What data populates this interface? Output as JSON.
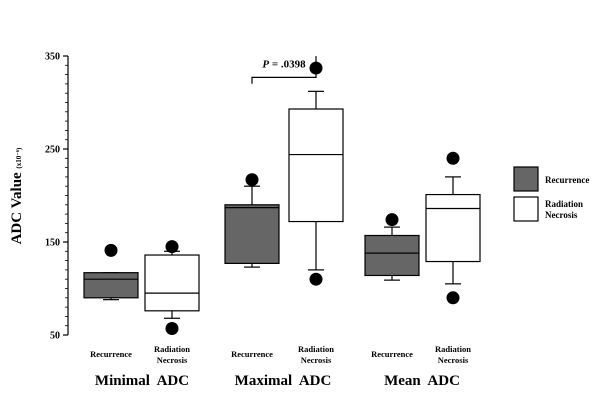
{
  "chart_data": {
    "type": "box",
    "ylabel": "ADC Value",
    "ylabel_unit": "(x10⁻⁶)",
    "ylim": [
      50,
      350
    ],
    "yticks": [
      50,
      150,
      250,
      350
    ],
    "groups": [
      {
        "label": "Minimal  ADC"
      },
      {
        "label": "Maximal  ADC"
      },
      {
        "label": "Mean  ADC"
      }
    ],
    "series": [
      {
        "name": "Recurrence",
        "color": "#666666"
      },
      {
        "name": "Radiation Necrosis",
        "color": "#ffffff"
      }
    ],
    "boxes": [
      {
        "group": 0,
        "series": 0,
        "category": "Recurrence",
        "whisker_low": 88,
        "q1": 90,
        "median": 110,
        "q3": 117,
        "whisker_high": 117,
        "outliers": [
          141
        ]
      },
      {
        "group": 0,
        "series": 1,
        "category_lines": [
          "Radiation",
          "Necrosis"
        ],
        "whisker_low": 68,
        "q1": 76,
        "median": 95,
        "q3": 136,
        "whisker_high": 140,
        "outliers": [
          145,
          57
        ]
      },
      {
        "group": 1,
        "series": 0,
        "category": "Recurrence",
        "whisker_low": 123,
        "q1": 127,
        "median": 187,
        "q3": 190,
        "whisker_high": 210,
        "outliers": [
          217
        ]
      },
      {
        "group": 1,
        "series": 1,
        "category_lines": [
          "Radiation",
          "Necrosis"
        ],
        "whisker_low": 120,
        "q1": 172,
        "median": 244,
        "q3": 293,
        "whisker_high": 312,
        "outliers": [
          337,
          110
        ]
      },
      {
        "group": 2,
        "series": 0,
        "category": "Recurrence",
        "whisker_low": 109,
        "q1": 114,
        "median": 138,
        "q3": 157,
        "whisker_high": 166,
        "outliers": [
          174
        ]
      },
      {
        "group": 2,
        "series": 1,
        "category_lines": [
          "Radiation",
          "Necrosis"
        ],
        "whisker_low": 105,
        "q1": 129,
        "median": 186,
        "q3": 201,
        "whisker_high": 220,
        "outliers": [
          240,
          90
        ]
      }
    ],
    "annotation": {
      "text": "P = .0398",
      "between": [
        2,
        3
      ],
      "y": 327
    },
    "legend_position": "right",
    "legend": [
      {
        "label_lines": [
          "Recurrence"
        ],
        "color": "#666666"
      },
      {
        "label_lines": [
          "Radiation",
          "Necrosis"
        ],
        "color": "#ffffff"
      }
    ]
  }
}
